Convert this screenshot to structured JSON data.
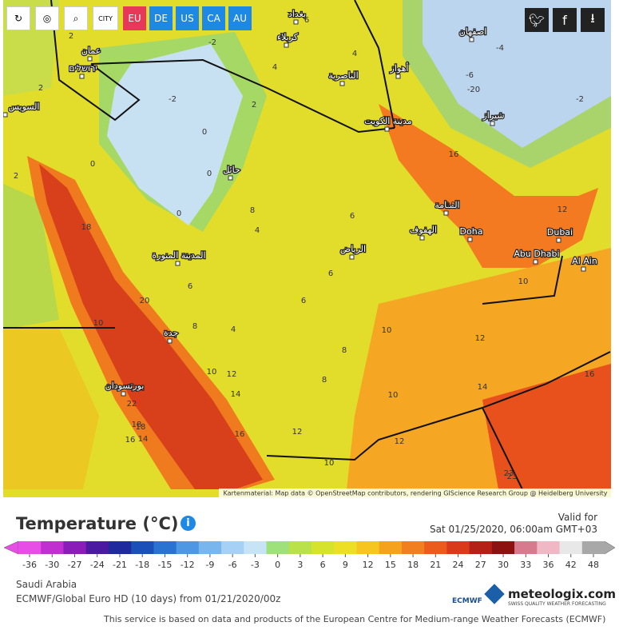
{
  "toolbar": {
    "city_button": "CITY",
    "regions": [
      "EU",
      "DE",
      "US",
      "CA",
      "AU"
    ]
  },
  "map": {
    "cities": [
      "بغداد",
      "کربلاء",
      "الناصرية",
      "أهواز",
      "اصفهان",
      "شیراز",
      "مدينة الكويت",
      "حائل",
      "المنامة",
      "الهفوف",
      "Doha",
      "Dubai",
      "Abu Dhabi",
      "Al Ain",
      "الرياض",
      "المدينة المنورة",
      "جدة",
      "بورتسودان",
      "عمان",
      "السويس",
      "ירושלים"
    ],
    "temperatures": [
      -2,
      -2,
      0,
      0,
      2,
      4,
      2,
      0,
      2,
      4,
      6,
      6,
      6,
      8,
      8,
      10,
      10,
      12,
      14,
      16,
      16,
      12,
      10,
      18,
      20,
      18,
      22,
      18,
      16,
      14,
      8,
      8,
      6,
      10,
      10,
      12,
      14,
      16,
      23,
      -2,
      -6,
      -4,
      4,
      6,
      10,
      12,
      -20,
      23,
      2,
      0,
      4,
      10,
      12
    ],
    "attribution": "Kartenmaterial: Map data © OpenStreetMap contributors, rendering GIScience Research Group @ Heidelberg University"
  },
  "header": {
    "title": "Temperature (°C)",
    "valid_label": "Valid for",
    "valid_time": "Sat 01/25/2020, 06:00am GMT+03"
  },
  "legend": {
    "ticks": [
      -36,
      -30,
      -27,
      -24,
      -21,
      -18,
      -15,
      -12,
      -9,
      -6,
      -3,
      0,
      3,
      6,
      9,
      12,
      15,
      18,
      21,
      24,
      27,
      30,
      33,
      36,
      42,
      48
    ],
    "colors": [
      "#e64ee6",
      "#c02fd0",
      "#8a1cb8",
      "#4b1aa0",
      "#1f2a9c",
      "#1c4fb8",
      "#2a73d0",
      "#4d97e3",
      "#7ab6ee",
      "#a6d0f4",
      "#c7e4f6",
      "#9ee07a",
      "#b9e24a",
      "#d6e32c",
      "#ece026",
      "#f6c51f",
      "#f5a31e",
      "#f17f1f",
      "#ea5b1c",
      "#d93a1a",
      "#b42016",
      "#8c1212",
      "#d87a8e",
      "#f0b8c4",
      "#e8e8e8",
      "#a8a8a8"
    ]
  },
  "footer": {
    "region": "Saudi Arabia",
    "model": "ECMWF/Global Euro HD (10 days) from 01/21/2020/00z",
    "ecmwf_logo": "ECMWF",
    "brand": "meteologix.com",
    "brand_tagline": "SWISS QUALITY WEATHER FORECASTING",
    "disclaimer": "This service is based on data and products of the European Centre for Medium-range Weather Forecasts (ECMWF)"
  }
}
